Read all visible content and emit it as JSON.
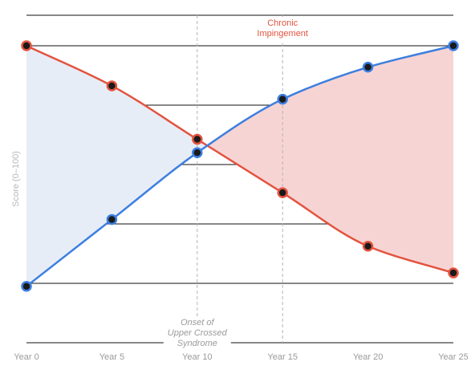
{
  "chart_data": {
    "type": "line",
    "title": "",
    "xlabel": "",
    "ylabel": "Score (0–100)",
    "categories": [
      "Year 0",
      "Year 5",
      "Year 10",
      "Year 15",
      "Year 20",
      "Year 25"
    ],
    "x": [
      0,
      5,
      10,
      15,
      20,
      25
    ],
    "ylim": [
      0,
      100
    ],
    "grid": true,
    "series": [
      {
        "name": "",
        "color": "#e3533f",
        "fill": "#f7d4d4",
        "values": [
          100,
          85,
          65,
          45,
          25,
          15
        ]
      },
      {
        "name": "",
        "color": "#3d7fe0",
        "fill": "#e7edf7",
        "values": [
          10,
          35,
          60,
          80,
          92,
          100
        ]
      }
    ],
    "annotations": [
      {
        "x": 10,
        "lines": [
          "Onset of",
          "Upper Crossed",
          "Syndrome"
        ],
        "style": "gray",
        "position": "bottom"
      },
      {
        "x": 15,
        "lines": [
          "Chronic",
          "Impingement"
        ],
        "style": "red",
        "position": "top"
      }
    ]
  }
}
